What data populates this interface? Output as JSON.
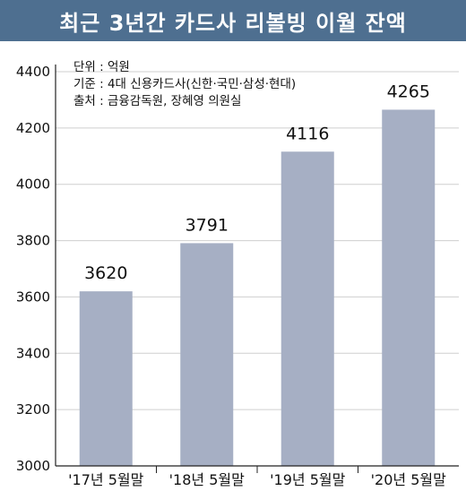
{
  "header": {
    "title": "최근 3년간 카드사 리볼빙 이월 잔액"
  },
  "meta": {
    "unit": "단위 : 억원",
    "basis": "기준 : 4대 신용카드사(신한·국민·삼성·현대)",
    "source": "출처 : 금융감독원, 장혜영 의원실"
  },
  "colors": {
    "title_bg": "#4e6f90",
    "bar": "#a6afc4",
    "grid": "#cfcfcf"
  },
  "chart_data": {
    "type": "bar",
    "title": "최근 3년간 카드사 리볼빙 이월 잔액",
    "categories": [
      "'17년 5월말",
      "'18년 5월말",
      "'19년 5월말",
      "'20년 5월말"
    ],
    "values": [
      3620,
      3791,
      4116,
      4265
    ],
    "data_labels": [
      "3620",
      "3791",
      "4116",
      "4265"
    ],
    "ylim": [
      3000,
      4400
    ],
    "yticks": [
      3000,
      3200,
      3400,
      3600,
      3800,
      4000,
      4200,
      4400
    ],
    "ytick_labels": [
      "3000",
      "3200",
      "3400",
      "3600",
      "3800",
      "4000",
      "4200",
      "4400"
    ],
    "grid": true,
    "xlabel": "",
    "ylabel": ""
  }
}
